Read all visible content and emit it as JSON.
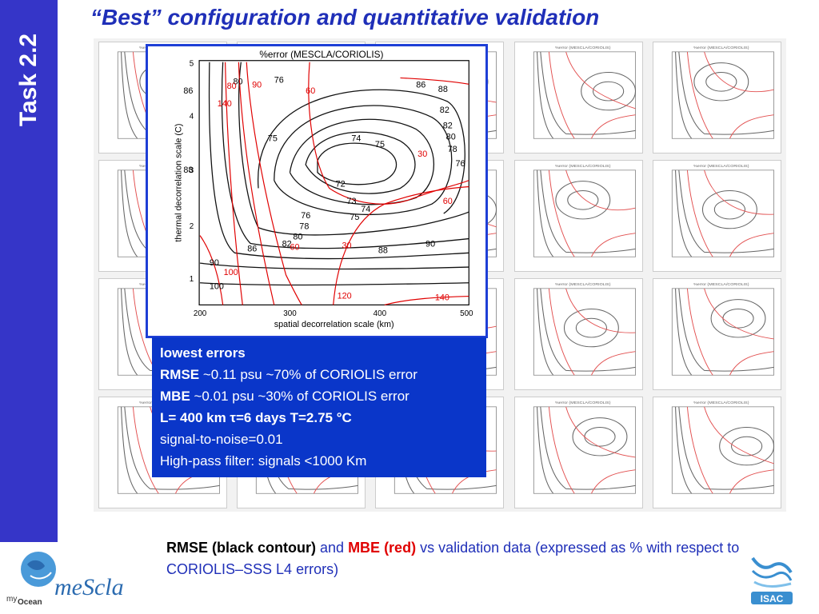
{
  "sidebar": {
    "title": "Task 2.2"
  },
  "header": {
    "title": "“Best” configuration and quantitative validation"
  },
  "main_plot": {
    "title": "%error (MESCLA/CORIOLIS)",
    "xlabel": "spatial decorrelation scale (km)",
    "ylabel": "thermal decorrelation scale (C)",
    "xticks": [
      "200",
      "300",
      "400",
      "500"
    ],
    "yticks": [
      "1",
      "2",
      "3",
      "4",
      "5"
    ],
    "black_labels": [
      "76",
      "74",
      "75",
      "72",
      "73",
      "74",
      "75",
      "76",
      "78",
      "80",
      "82",
      "86",
      "88",
      "90",
      "90",
      "100",
      "80",
      "82",
      "86",
      "88",
      "75",
      "88",
      "82",
      "80",
      "78",
      "76",
      "86"
    ],
    "red_labels": [
      "60",
      "30",
      "120",
      "140",
      "100",
      "90",
      "80",
      "60",
      "30",
      "60",
      "140"
    ]
  },
  "small_plots": {
    "title": "%error (MESCLA/CORIOLIS)"
  },
  "infobox": {
    "line1": "lowest errors",
    "line2_bold": "RMSE",
    "line2_rest": " ~0.11 psu  ~70% of CORIOLIS error",
    "line3_bold": "MBE",
    "line3_rest": "  ~0.01 psu  ~30% of CORIOLIS error",
    "line4": "L= 400 km    τ=6 days T=2.75 °C",
    "line5": "signal-to-noise=0.01",
    "line6": "High-pass filter: signals <1000 Km"
  },
  "caption": {
    "part1": "RMSE (black contour)",
    "part2": " and ",
    "part3": "MBE (red)",
    "part4": " vs validation data (expressed as % with respect to CORIOLIS–SSS L4 errors)"
  },
  "logos": {
    "left_small": "my",
    "left_ocean": "Ocean",
    "left_main": "meScla",
    "right": "ISAC"
  },
  "colors": {
    "sidebar": "#3535c8",
    "title": "#1f2fb8",
    "infobox": "#0a36c9",
    "rmse": "#000000",
    "mbe": "#e00000"
  }
}
